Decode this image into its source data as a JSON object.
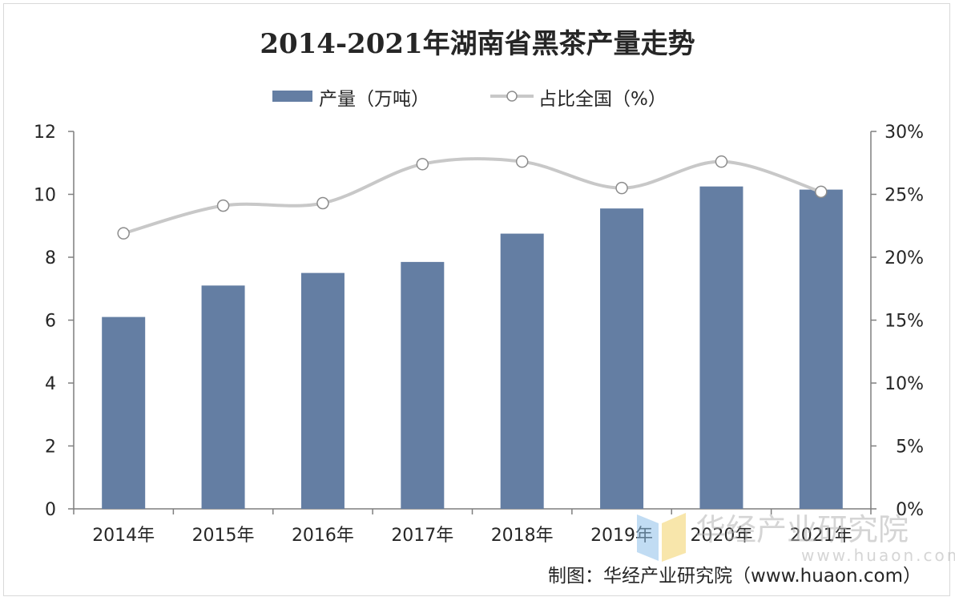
{
  "chart_data": {
    "type": "bar",
    "title": "2014-2021年湖南省黑茶产量走势",
    "categories": [
      "2014年",
      "2015年",
      "2016年",
      "2017年",
      "2018年",
      "2019年",
      "2020年",
      "2021年"
    ],
    "series": [
      {
        "name": "产量（万吨）",
        "type": "bar",
        "axis": "left",
        "values": [
          6.1,
          7.1,
          7.5,
          7.85,
          8.75,
          9.55,
          10.25,
          10.15
        ]
      },
      {
        "name": "占比全国（%）",
        "type": "line",
        "axis": "right",
        "values": [
          21.9,
          24.1,
          24.3,
          27.4,
          27.6,
          25.5,
          27.6,
          25.2
        ]
      }
    ],
    "ylim": [
      0,
      12
    ],
    "yticks": [
      "0",
      "2",
      "4",
      "6",
      "8",
      "10",
      "12"
    ],
    "y2lim": [
      0,
      30
    ],
    "y2ticks": [
      "0%",
      "5%",
      "10%",
      "15%",
      "20%",
      "25%",
      "30%"
    ],
    "legend_position": "top-center",
    "grid": false,
    "source": "制图：华经产业研究院（www.huaon.com）"
  },
  "watermark": {
    "text": "华经产业研究院",
    "url": "www.huaon.com"
  },
  "colors": {
    "bar": "#647ea3",
    "line": "#c8c8c8",
    "marker_fill": "#ffffff",
    "marker_stroke": "#8c8c8c",
    "axis": "#7f7f7f",
    "text": "#262626"
  }
}
